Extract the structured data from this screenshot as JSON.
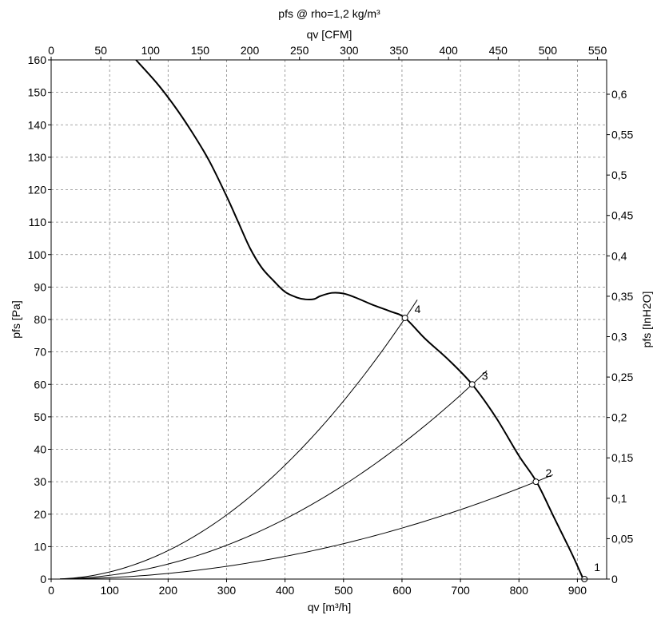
{
  "chart_data": {
    "type": "line",
    "title": "pfs @ rho=1,2 kg/m³",
    "xlabel": "qv [m³/h]",
    "x2label": "qv [CFM]",
    "ylabel": "pfs [Pa]",
    "y2label": "pfs [InH2O]",
    "xlim": [
      0,
      950
    ],
    "ylim": [
      0,
      160
    ],
    "x2lim": [
      0,
      559.2
    ],
    "y2lim": [
      0,
      0.6425
    ],
    "xticks": [
      "0",
      "100",
      "200",
      "300",
      "400",
      "500",
      "600",
      "700",
      "800",
      "900"
    ],
    "xtick_values": [
      0,
      100,
      200,
      300,
      400,
      500,
      600,
      700,
      800,
      900
    ],
    "yticks": [
      "0",
      "10",
      "20",
      "30",
      "40",
      "50",
      "60",
      "70",
      "80",
      "90",
      "100",
      "110",
      "120",
      "130",
      "140",
      "150",
      "160"
    ],
    "ytick_values": [
      0,
      10,
      20,
      30,
      40,
      50,
      60,
      70,
      80,
      90,
      100,
      110,
      120,
      130,
      140,
      150,
      160
    ],
    "x2ticks": [
      "0",
      "50",
      "100",
      "150",
      "200",
      "250",
      "300",
      "350",
      "400",
      "450",
      "500",
      "550"
    ],
    "x2tick_values": [
      0,
      50,
      100,
      150,
      200,
      250,
      300,
      350,
      400,
      450,
      500,
      550
    ],
    "y2ticks": [
      "0",
      "0,05",
      "0,1",
      "0,15",
      "0,2",
      "0,25",
      "0,3",
      "0,35",
      "0,4",
      "0,45",
      "0,5",
      "0,55",
      "0,6"
    ],
    "y2tick_values": [
      0,
      0.05,
      0.1,
      0.15,
      0.2,
      0.25,
      0.3,
      0.35,
      0.4,
      0.45,
      0.5,
      0.55,
      0.6
    ],
    "grid": true,
    "fan_curve": {
      "x": [
        145,
        180,
        210,
        240,
        270,
        300,
        320,
        340,
        360,
        380,
        400,
        420,
        435,
        450,
        460,
        480,
        500,
        520,
        550,
        580,
        605,
        640,
        680,
        720,
        760,
        800,
        830,
        860,
        890,
        910
      ],
      "y": [
        160,
        153,
        146,
        138,
        129,
        118,
        110,
        102,
        96,
        92,
        88.5,
        86.8,
        86.2,
        86.3,
        87.2,
        88.2,
        88,
        86.8,
        84.5,
        82.5,
        80.5,
        74,
        67.5,
        60,
        50,
        38,
        30,
        19,
        8,
        0
      ]
    },
    "system_curves": [
      {
        "name": "1",
        "k": 0
      },
      {
        "name": "2",
        "k": 4.365e-05
      },
      {
        "name": "3",
        "k": 0.0001157
      },
      {
        "name": "4",
        "k": 0.0002195
      }
    ],
    "operating_points": [
      {
        "label": "1",
        "x": 912,
        "y": 0
      },
      {
        "label": "2",
        "x": 829,
        "y": 30
      },
      {
        "label": "3",
        "x": 720,
        "y": 60
      },
      {
        "label": "4",
        "x": 605,
        "y": 80.5
      }
    ]
  }
}
